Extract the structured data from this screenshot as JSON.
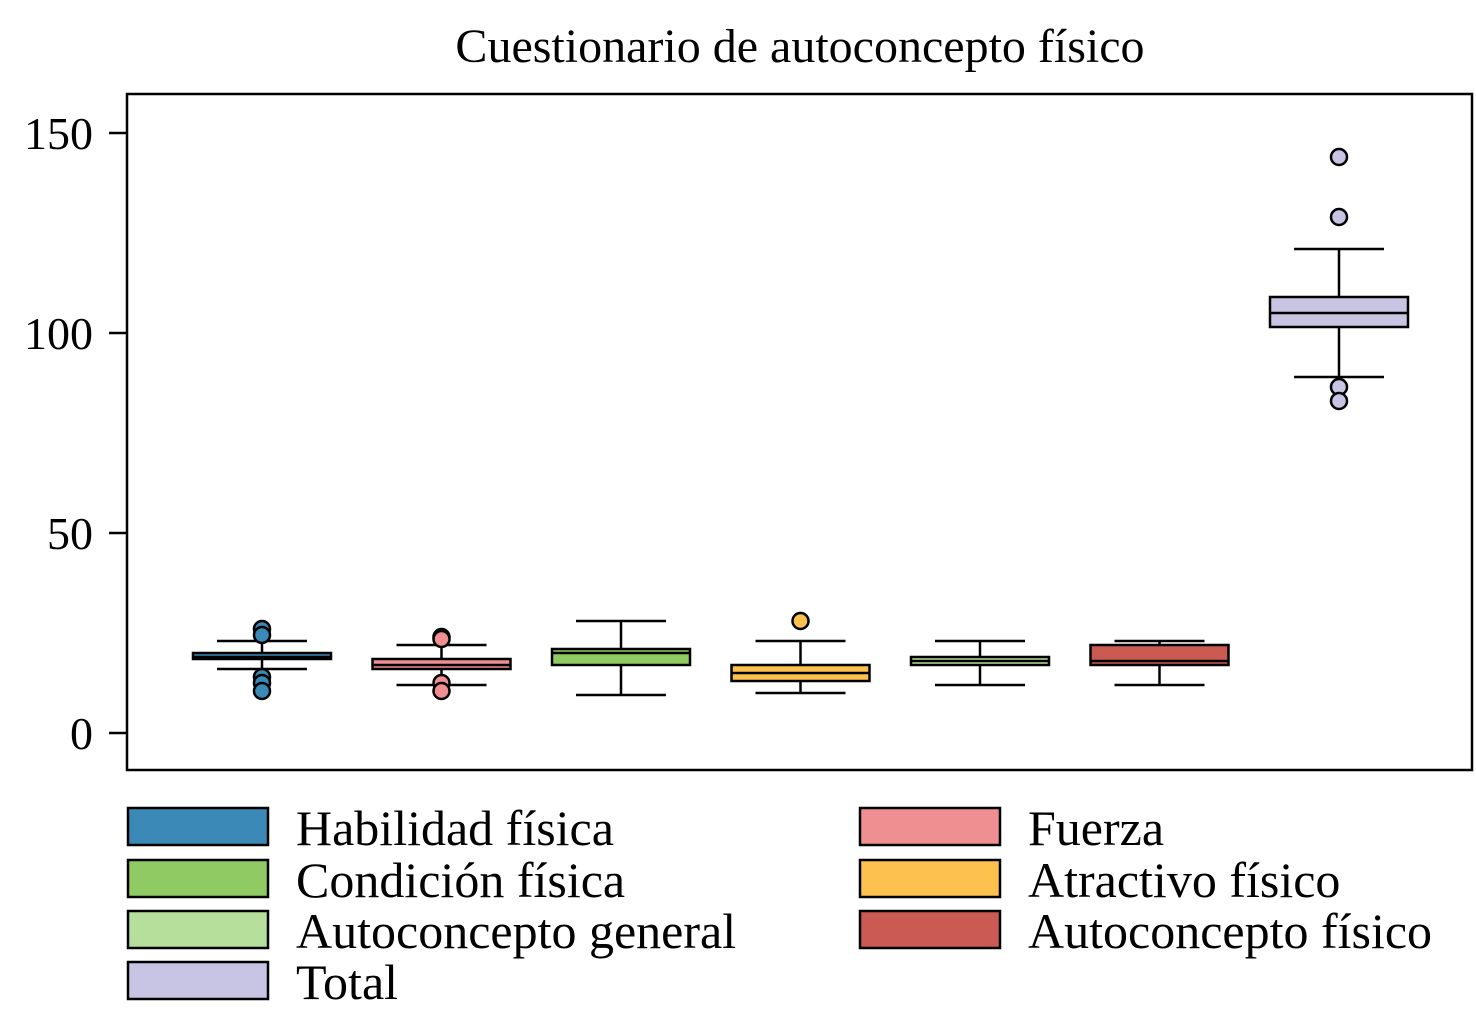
{
  "chart_data": {
    "type": "box",
    "title": "Cuestionario de autoconcepto físico",
    "xlabel": "",
    "ylabel": "",
    "ylim": [
      -9,
      160
    ],
    "yticks": [
      0,
      50,
      100,
      150
    ],
    "grid": false,
    "legend_position": "bottom",
    "series": [
      {
        "name": "Habilidad física",
        "color": "#3b89b6",
        "whisker_low": 16,
        "q1": 18.5,
        "median": 19,
        "q3": 20,
        "whisker_high": 23,
        "outliers": [
          26,
          24.5,
          14,
          12.5,
          10.5
        ]
      },
      {
        "name": "Fuerza",
        "color": "#f08f92",
        "whisker_low": 12,
        "q1": 16,
        "median": 17,
        "q3": 18.5,
        "whisker_high": 22,
        "outliers": [
          24,
          23.5,
          12.5,
          10.5
        ]
      },
      {
        "name": "Condición física",
        "color": "#8fca63",
        "whisker_low": 9.5,
        "q1": 17,
        "median": 20,
        "q3": 21,
        "whisker_high": 28,
        "outliers": []
      },
      {
        "name": "Atractivo físico",
        "color": "#fdc24e",
        "whisker_low": 10,
        "q1": 13,
        "median": 15,
        "q3": 17,
        "whisker_high": 23,
        "outliers": [
          28
        ]
      },
      {
        "name": "Autoconcepto general",
        "color": "#b6df9b",
        "whisker_low": 12,
        "q1": 17,
        "median": 18,
        "q3": 19,
        "whisker_high": 23,
        "outliers": []
      },
      {
        "name": "Autoconcepto físico",
        "color": "#cb5a52",
        "whisker_low": 12,
        "q1": 17,
        "median": 18,
        "q3": 22,
        "whisker_high": 23,
        "outliers": []
      },
      {
        "name": "Total",
        "color": "#c8c4e3",
        "whisker_low": 89,
        "q1": 101.5,
        "median": 105,
        "q3": 109,
        "whisker_high": 121,
        "outliers": [
          144,
          129,
          86.5,
          83
        ]
      }
    ]
  }
}
